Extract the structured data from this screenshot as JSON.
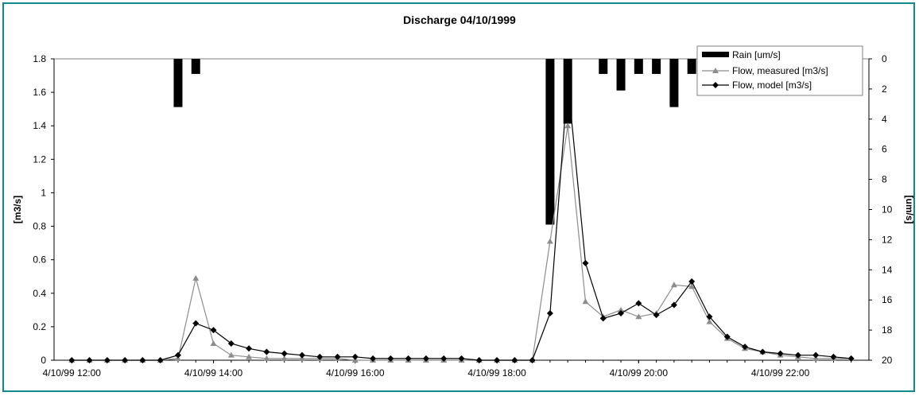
{
  "chart_data": {
    "type": "line",
    "title": "Discharge 04/10/1999",
    "ylabel": "[m3/s]",
    "y2label": "[um/s]",
    "ylim": [
      0,
      1.8
    ],
    "yticks": [
      "0",
      "0.2",
      "0.4",
      "0.6",
      "0.8",
      "1",
      "1.2",
      "1.4",
      "1.6",
      "1.8"
    ],
    "y2lim": [
      20,
      0
    ],
    "y2ticks": [
      "0",
      "2",
      "4",
      "6",
      "8",
      "10",
      "12",
      "14",
      "16",
      "18",
      "20"
    ],
    "xlim_hours": [
      11.75,
      23.25
    ],
    "xticks": [
      {
        "label": "4/10/99 12:00",
        "hour": 12
      },
      {
        "label": "4/10/99 14:00",
        "hour": 14
      },
      {
        "label": "4/10/99 16:00",
        "hour": 16
      },
      {
        "label": "4/10/99 18:00",
        "hour": 18
      },
      {
        "label": "4/10/99 20:00",
        "hour": 20
      },
      {
        "label": "4/10/99 22:00",
        "hour": 22
      }
    ],
    "legend_position": "top-right",
    "grid": false,
    "x_hours": [
      12.0,
      12.25,
      12.5,
      12.75,
      13.0,
      13.25,
      13.5,
      13.75,
      14.0,
      14.25,
      14.5,
      14.75,
      15.0,
      15.25,
      15.5,
      15.75,
      16.0,
      16.25,
      16.5,
      16.75,
      17.0,
      17.25,
      17.5,
      17.75,
      18.0,
      18.25,
      18.5,
      18.75,
      19.0,
      19.25,
      19.5,
      19.75,
      20.0,
      20.25,
      20.5,
      20.75,
      21.0,
      21.25,
      21.5,
      21.75,
      22.0,
      22.25,
      22.5,
      22.75,
      23.0
    ],
    "rain": {
      "name": "Rain [um/s]",
      "color": "#000000",
      "bars": [
        {
          "hour": 13.5,
          "value": 3.2
        },
        {
          "hour": 13.75,
          "value": 1.0
        },
        {
          "hour": 18.75,
          "value": 11.0
        },
        {
          "hour": 19.0,
          "value": 4.3
        },
        {
          "hour": 19.5,
          "value": 1.0
        },
        {
          "hour": 19.75,
          "value": 2.1
        },
        {
          "hour": 20.0,
          "value": 1.0
        },
        {
          "hour": 20.25,
          "value": 1.0
        },
        {
          "hour": 20.5,
          "value": 3.2
        },
        {
          "hour": 20.75,
          "value": 1.0
        }
      ]
    },
    "series": [
      {
        "name": "Flow, measured [m3/s]",
        "color": "#8c8c8c",
        "marker": "triangle",
        "values": [
          0,
          0,
          0,
          0,
          0,
          0,
          0.01,
          0.49,
          0.1,
          0.03,
          0.02,
          0.01,
          0.01,
          0.01,
          0.01,
          0.01,
          0,
          0,
          0,
          0,
          0,
          0,
          0,
          0,
          0,
          0,
          0,
          0.71,
          1.4,
          0.35,
          0.26,
          0.3,
          0.26,
          0.28,
          0.45,
          0.44,
          0.23,
          0.13,
          0.07,
          0.05,
          0.03,
          0.02,
          0.01,
          0.01,
          0.01
        ]
      },
      {
        "name": "Flow, model [m3/s]",
        "color": "#000000",
        "marker": "diamond",
        "values": [
          0,
          0,
          0,
          0,
          0,
          0,
          0.03,
          0.22,
          0.18,
          0.1,
          0.07,
          0.05,
          0.04,
          0.03,
          0.02,
          0.02,
          0.02,
          0.01,
          0.01,
          0.01,
          0.01,
          0.01,
          0.01,
          0,
          0,
          0,
          0,
          0.28,
          1.67,
          0.58,
          0.25,
          0.28,
          0.34,
          0.27,
          0.33,
          0.47,
          0.26,
          0.14,
          0.08,
          0.05,
          0.04,
          0.03,
          0.03,
          0.02,
          0.01
        ]
      }
    ]
  }
}
